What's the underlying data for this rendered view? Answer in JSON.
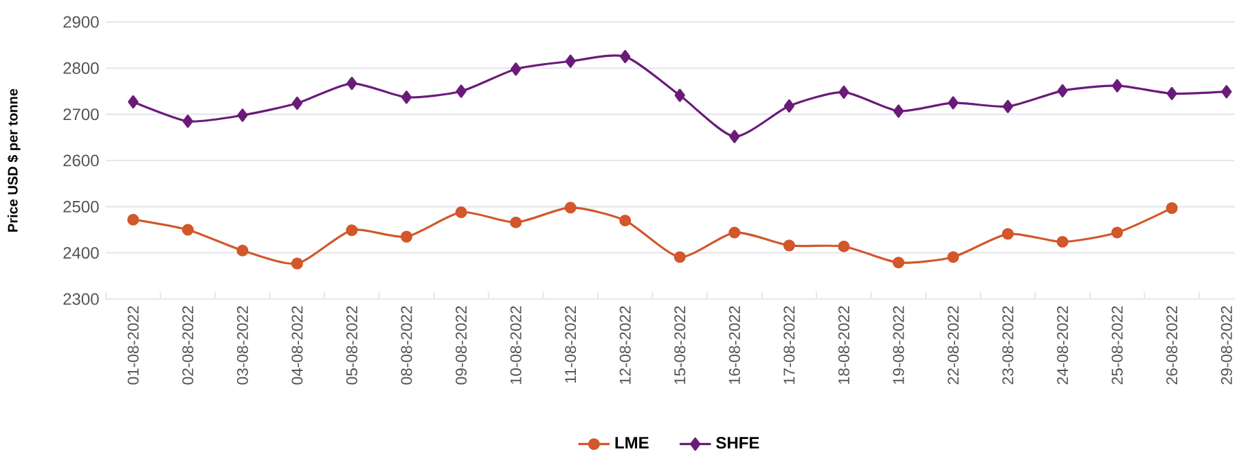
{
  "chart_data": {
    "type": "line",
    "ylabel": "Price USD $ per tonne",
    "categories": [
      "01-08-2022",
      "02-08-2022",
      "03-08-2022",
      "04-08-2022",
      "05-08-2022",
      "08-08-2022",
      "09-08-2022",
      "10-08-2022",
      "11-08-2022",
      "12-08-2022",
      "15-08-2022",
      "16-08-2022",
      "17-08-2022",
      "18-08-2022",
      "19-08-2022",
      "22-08-2022",
      "23-08-2022",
      "24-08-2022",
      "25-08-2022",
      "26-08-2022",
      "29-08-2022"
    ],
    "series": [
      {
        "name": "LME",
        "color": "#d2572a",
        "marker": "circle",
        "values": [
          2472,
          2450,
          2405,
          2377,
          2449,
          2435,
          2488,
          2466,
          2498,
          2470,
          2391,
          2444,
          2416,
          2414,
          2379,
          2391,
          2441,
          2424,
          2444,
          2497,
          null
        ]
      },
      {
        "name": "SHFE",
        "color": "#6a1b7a",
        "marker": "diamond",
        "values": [
          2727,
          2685,
          2698,
          2724,
          2767,
          2737,
          2750,
          2798,
          2815,
          2825,
          2741,
          2652,
          2718,
          2748,
          2707,
          2725,
          2717,
          2751,
          2762,
          2745,
          2749
        ]
      }
    ],
    "ylim": [
      2300,
      2900
    ],
    "yticks": [
      2300,
      2400,
      2500,
      2600,
      2700,
      2800,
      2900
    ],
    "grid": "y",
    "legend": "bottom",
    "line_style": "solid"
  }
}
